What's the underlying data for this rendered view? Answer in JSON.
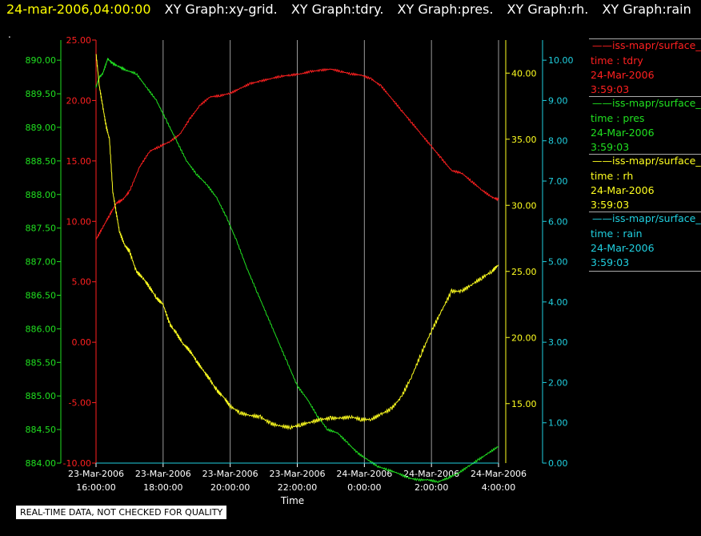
{
  "header": {
    "timestamp": "24-mar-2006,04:00:00",
    "tabs": [
      "XY Graph:xy-grid.",
      "XY Graph:tdry.",
      "XY Graph:pres.",
      "XY Graph:rh.",
      "XY Graph:rain"
    ],
    "dot": "."
  },
  "note": "REAL-TIME DATA, NOT CHECKED FOR QUALITY",
  "legend": [
    {
      "name": "iss-mapr/surface_",
      "line2": "time : tdry",
      "line3": "24-Mar-2006",
      "line4": "3:59:03",
      "color": "#ff2020"
    },
    {
      "name": "iss-mapr/surface_",
      "line2": "time : pres",
      "line3": "24-Mar-2006",
      "line4": "3:59:03",
      "color": "#20e020"
    },
    {
      "name": "iss-mapr/surface_",
      "line2": "time : rh",
      "line3": "24-Mar-2006",
      "line4": "3:59:03",
      "color": "#ffff20"
    },
    {
      "name": "iss-mapr/surface_",
      "line2": "time : rain",
      "line3": "24-Mar-2006",
      "line4": "3:59:03",
      "color": "#20d0e0"
    }
  ],
  "chart_data": {
    "type": "line",
    "xlabel": "Time",
    "xlim": [
      16,
      28
    ],
    "x_ticks": [
      {
        "x": 16,
        "line1": "23-Mar-2006",
        "line2": "16:00:00"
      },
      {
        "x": 18,
        "line1": "23-Mar-2006",
        "line2": "18:00:00"
      },
      {
        "x": 20,
        "line1": "23-Mar-2006",
        "line2": "20:00:00"
      },
      {
        "x": 22,
        "line1": "23-Mar-2006",
        "line2": "22:00:00"
      },
      {
        "x": 24,
        "line1": "24-Mar-2006",
        "line2": "0:00:00"
      },
      {
        "x": 26,
        "line1": "24-Mar-2006",
        "line2": "2:00:00"
      },
      {
        "x": 28,
        "line1": "24-Mar-2006",
        "line2": "4:00:00"
      }
    ],
    "grid": true,
    "axes": [
      {
        "id": "tdry",
        "side": "left-inner",
        "color": "#ff2020",
        "ylim": [
          -10,
          25
        ],
        "ticks": [
          "25.00",
          "20.00",
          "15.00",
          "10.00",
          "5.00",
          "0.00",
          "-5.00",
          "-10.00"
        ]
      },
      {
        "id": "pres",
        "side": "left-outer",
        "color": "#20e020",
        "ylim": [
          884,
          890.3
        ],
        "ticks": [
          "890.00",
          "889.50",
          "889.00",
          "888.50",
          "888.00",
          "887.50",
          "887.00",
          "886.50",
          "886.00",
          "885.50",
          "885.00",
          "884.50",
          "884.00"
        ]
      },
      {
        "id": "rh",
        "side": "right-inner",
        "color": "#ffff20",
        "ylim": [
          10.5,
          42.5
        ],
        "ticks": [
          "40.00",
          "35.00",
          "30.00",
          "25.00",
          "20.00",
          "15.00"
        ]
      },
      {
        "id": "rain",
        "side": "right-outer",
        "color": "#20d0e0",
        "ylim": [
          0,
          10.5
        ],
        "ticks": [
          "10.00",
          "9.00",
          "8.00",
          "7.00",
          "6.00",
          "5.00",
          "4.00",
          "3.00",
          "2.00",
          "1.00",
          "0.00"
        ]
      }
    ],
    "series": [
      {
        "name": "tdry",
        "axis": "tdry",
        "color": "#ff2020",
        "x": [
          16.0,
          16.2,
          16.4,
          16.6,
          16.8,
          17.0,
          17.3,
          17.6,
          17.9,
          18.2,
          18.5,
          18.8,
          19.1,
          19.4,
          19.7,
          20.0,
          20.3,
          20.6,
          20.9,
          21.2,
          21.5,
          21.8,
          22.1,
          22.4,
          22.7,
          23.0,
          23.3,
          23.6,
          23.9,
          24.2,
          24.5,
          24.8,
          25.1,
          25.4,
          25.7,
          26.0,
          26.3,
          26.6,
          26.9,
          27.2,
          27.5,
          27.8,
          28.0
        ],
        "y": [
          8.5,
          9.5,
          10.5,
          11.5,
          11.8,
          12.5,
          14.5,
          15.8,
          16.2,
          16.6,
          17.2,
          18.5,
          19.6,
          20.3,
          20.4,
          20.6,
          21.0,
          21.4,
          21.6,
          21.8,
          22.0,
          22.1,
          22.2,
          22.4,
          22.5,
          22.6,
          22.4,
          22.2,
          22.1,
          21.8,
          21.2,
          20.2,
          19.2,
          18.2,
          17.2,
          16.2,
          15.2,
          14.2,
          14.0,
          13.3,
          12.6,
          12.0,
          11.8
        ]
      },
      {
        "name": "pres",
        "axis": "pres",
        "color": "#20e020",
        "x": [
          16.0,
          16.1,
          16.2,
          16.35,
          16.5,
          16.7,
          16.9,
          17.2,
          17.5,
          17.8,
          18.1,
          18.4,
          18.7,
          19.0,
          19.3,
          19.6,
          19.9,
          20.2,
          20.5,
          20.8,
          21.1,
          21.4,
          21.7,
          22.0,
          22.3,
          22.6,
          22.9,
          23.2,
          23.5,
          23.8,
          24.1,
          24.4,
          24.7,
          25.0,
          25.3,
          25.6,
          25.9,
          26.2,
          26.5,
          26.8,
          27.1,
          27.4,
          27.7,
          28.0
        ],
        "y": [
          889.6,
          889.75,
          889.8,
          890.02,
          889.95,
          889.9,
          889.85,
          889.8,
          889.6,
          889.4,
          889.1,
          888.8,
          888.5,
          888.3,
          888.15,
          887.95,
          887.65,
          887.3,
          886.9,
          886.55,
          886.2,
          885.85,
          885.5,
          885.15,
          884.95,
          884.7,
          884.5,
          884.45,
          884.3,
          884.15,
          884.05,
          883.95,
          883.9,
          883.85,
          883.78,
          883.75,
          883.75,
          883.72,
          883.78,
          883.85,
          883.95,
          884.05,
          884.15,
          884.25
        ]
      },
      {
        "name": "rh",
        "axis": "rh",
        "color": "#ffff20",
        "x": [
          16.0,
          16.1,
          16.2,
          16.3,
          16.4,
          16.5,
          16.6,
          16.7,
          16.85,
          17.0,
          17.2,
          17.4,
          17.6,
          17.8,
          18.0,
          18.2,
          18.4,
          18.6,
          18.8,
          19.0,
          19.2,
          19.4,
          19.6,
          19.8,
          20.0,
          20.3,
          20.6,
          20.9,
          21.2,
          21.5,
          21.8,
          22.1,
          22.4,
          22.7,
          23.0,
          23.3,
          23.6,
          23.9,
          24.2,
          24.5,
          24.8,
          25.1,
          25.4,
          25.7,
          26.0,
          26.3,
          26.6,
          26.9,
          27.2,
          27.5,
          27.8,
          28.0
        ],
        "y": [
          41.5,
          39.0,
          37.5,
          36.0,
          35.0,
          31.0,
          29.5,
          28.0,
          27.0,
          26.5,
          25.0,
          24.5,
          23.8,
          23.0,
          22.5,
          21.0,
          20.3,
          19.5,
          19.0,
          18.2,
          17.5,
          16.8,
          16.0,
          15.5,
          14.8,
          14.3,
          14.1,
          14.0,
          13.5,
          13.3,
          13.2,
          13.4,
          13.6,
          13.8,
          13.9,
          13.9,
          14.0,
          13.8,
          13.8,
          14.2,
          14.6,
          15.5,
          17.0,
          18.8,
          20.5,
          22.0,
          23.5,
          23.5,
          24.0,
          24.5,
          25.0,
          25.5
        ]
      },
      {
        "name": "rain",
        "axis": "rain",
        "color": "#20d0e0",
        "x": [
          16.0,
          28.0
        ],
        "y": [
          0.0,
          0.0
        ]
      }
    ]
  }
}
